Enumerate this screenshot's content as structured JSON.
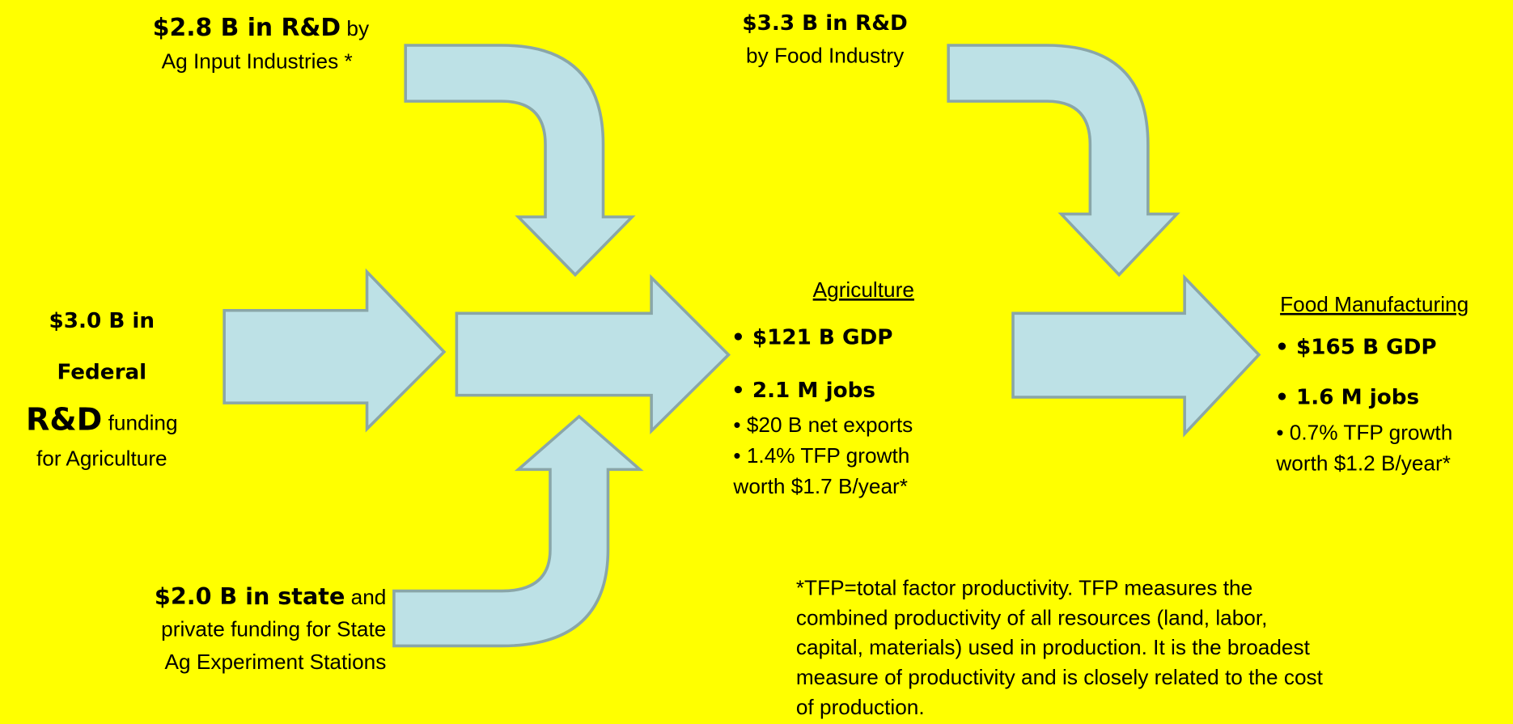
{
  "ag_input": {
    "bold": "$2.8 B in R&D",
    "rest": "by",
    "line2": "Ag Input Industries *"
  },
  "food_industry": {
    "bold": "$3.3 B in R&D",
    "line2": "by Food Industry"
  },
  "federal": {
    "bold_lines": [
      "$3.0 B in",
      "Federal",
      "R&D"
    ],
    "rest": "funding",
    "line4": "for  Agriculture"
  },
  "state": {
    "bold": "$2.0 B in state",
    "rest": "and",
    "lines": [
      "private funding for State",
      "Ag Experiment Stations"
    ]
  },
  "agriculture": {
    "heading": "Agriculture",
    "big": [
      "• $121 B GDP",
      "• 2.1 M jobs"
    ],
    "small": [
      "• $20 B net exports",
      "• 1.4% TFP growth",
      "worth $1.7 B/year*"
    ]
  },
  "food_manufacturing": {
    "heading": "Food Manufacturing",
    "big": [
      "• $165 B GDP",
      "• 1.6 M jobs"
    ],
    "small": [
      "• 0.7% TFP growth",
      "worth $1.2 B/year*"
    ]
  },
  "footnote": [
    "*TFP=total factor productivity. TFP measures the",
    "combined productivity of all resources (land, labor,",
    "capital, materials) used in production. It is the broadest",
    "measure of productivity and is closely related to the cost",
    "of production."
  ]
}
